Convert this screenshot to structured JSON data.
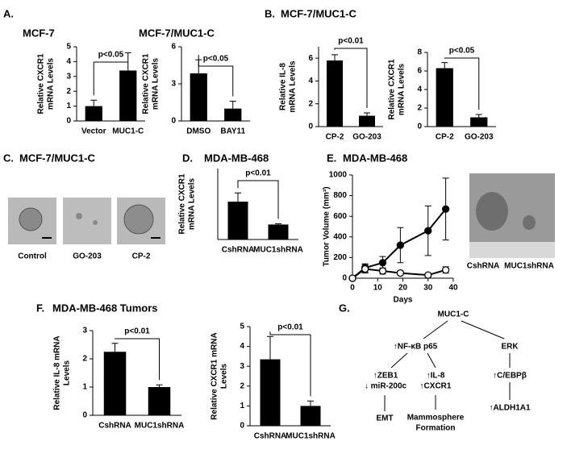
{
  "panels": [
    {
      "label": "A."
    },
    {
      "label": "B.",
      "title": "MCF-7/MUC1-C"
    },
    {
      "label": "C.",
      "title": "MCF-7/MUC1-C"
    },
    {
      "label": "D."
    },
    {
      "label": "E."
    },
    {
      "label": "F.",
      "title": "MDA-MB-468 Tumors"
    },
    {
      "label": "G."
    }
  ],
  "images": {
    "C": [
      "Control",
      "GO-203",
      "CP-2"
    ],
    "E": [
      "CshRNA",
      "MUC1shRNA"
    ]
  },
  "diagram": {
    "nodes": [
      [
        "MUC1-C"
      ],
      [
        "↑NF-κB p65"
      ],
      [
        "ERK"
      ],
      [
        "↑ZEB1",
        "↓ miR-200c"
      ],
      [
        "↑IL-8",
        "↑CXCR1"
      ],
      [
        "↑C/EBPβ"
      ],
      [
        "EMT"
      ],
      [
        "Mammosphere",
        "Formation"
      ],
      [
        "↑ALDH1A1"
      ]
    ]
  },
  "chart_data": [
    {
      "type": "bar",
      "title": "MCF-7",
      "ylabel": [
        "Relative CXCR1",
        "mRNA Levels"
      ],
      "categories": [
        "Vector",
        "MUC1-C"
      ],
      "values": [
        1.0,
        3.4
      ],
      "errors": [
        0.4,
        1.2
      ],
      "color": "#000000",
      "ylim": [
        0,
        5
      ],
      "yticks": [
        0,
        1,
        2,
        3,
        4,
        5
      ],
      "annotation": "p<0.05"
    },
    {
      "type": "bar",
      "title": "MCF-7/MUC1-C",
      "ylabel": [
        "Relative CXCR1",
        "mRNA Levels"
      ],
      "categories": [
        "DMSO",
        "BAY11"
      ],
      "values": [
        3.85,
        1.0
      ],
      "errors": [
        1.1,
        0.6
      ],
      "color": "#000000",
      "ylim": [
        0,
        6
      ],
      "yticks": [
        0,
        3,
        6
      ],
      "annotation": "p<0.05"
    },
    {
      "type": "bar",
      "ylabel": [
        "Relative IL-8",
        "mRNA Levels"
      ],
      "categories": [
        "CP-2",
        "GO-203"
      ],
      "values": [
        5.8,
        0.95
      ],
      "errors": [
        0.5,
        0.25
      ],
      "color": "#000000",
      "ylim": [
        0,
        7
      ],
      "yticks": [
        0,
        2,
        4,
        6
      ],
      "annotation": "p<0.01"
    },
    {
      "type": "bar",
      "ylabel": [
        "Relative CXCR1",
        "mRNA Levels"
      ],
      "categories": [
        "CP-2",
        "GO-203"
      ],
      "values": [
        6.3,
        1.0
      ],
      "errors": [
        0.6,
        0.3
      ],
      "color": "#000000",
      "ylim": [
        0,
        8
      ],
      "yticks": [
        0,
        2,
        4,
        6,
        8
      ],
      "annotation": "p<0.05"
    },
    {
      "type": "bar",
      "title": "MDA-MB-468",
      "ylabel": [
        "Relative CXCR1",
        "mRNA Levels"
      ],
      "categories": [
        "CshRNA",
        "MUC1shRNA"
      ],
      "values": [
        2.4,
        0.95
      ],
      "errors": [
        0.55,
        0.05
      ],
      "color": "#000000",
      "ylim": [
        0,
        4.5
      ],
      "annotation": "p<0.01"
    },
    {
      "type": "line",
      "title": "MDA-MB-468",
      "ylabel": [
        "Tumor Volume (mm³)"
      ],
      "xlabel": "Days",
      "x": [
        0,
        5,
        12,
        19,
        30,
        37
      ],
      "series": [
        {
          "color": "#000000",
          "marker": "filled",
          "values": [
            0,
            100,
            150,
            320,
            460,
            670
          ],
          "errors": [
            0,
            40,
            60,
            170,
            240,
            300
          ]
        },
        {
          "color": "#000000",
          "marker": "open",
          "values": [
            0,
            90,
            70,
            50,
            30,
            80
          ],
          "errors": [
            0,
            40,
            30,
            15,
            15,
            30
          ]
        }
      ],
      "xlim": [
        0,
        40
      ],
      "xticks": [
        0,
        10,
        20,
        30,
        40
      ],
      "ylim": [
        0,
        1000
      ],
      "yticks": [
        0,
        200,
        400,
        600,
        800,
        1000
      ]
    },
    {
      "type": "bar",
      "ylabel": [
        "Relative IL-8 mRNA",
        "Levels"
      ],
      "categories": [
        "CshRNA",
        "MUC1shRNA"
      ],
      "values": [
        2.25,
        1.0
      ],
      "errors": [
        0.3,
        0.08
      ],
      "color": "#000000",
      "ylim": [
        0,
        3
      ],
      "yticks": [
        0,
        1,
        2,
        3
      ],
      "annotation": "p<0.01"
    },
    {
      "type": "bar",
      "ylabel": [
        "Relative CXCR1 mRNA",
        "Levels"
      ],
      "categories": [
        "CshRNA",
        "MUC1shRNA"
      ],
      "values": [
        3.35,
        1.0
      ],
      "errors": [
        1.15,
        0.25
      ],
      "color": "#000000",
      "ylim": [
        0,
        5
      ],
      "yticks": [
        0,
        1,
        2,
        3,
        4,
        5
      ],
      "annotation": "p<0.01"
    }
  ]
}
